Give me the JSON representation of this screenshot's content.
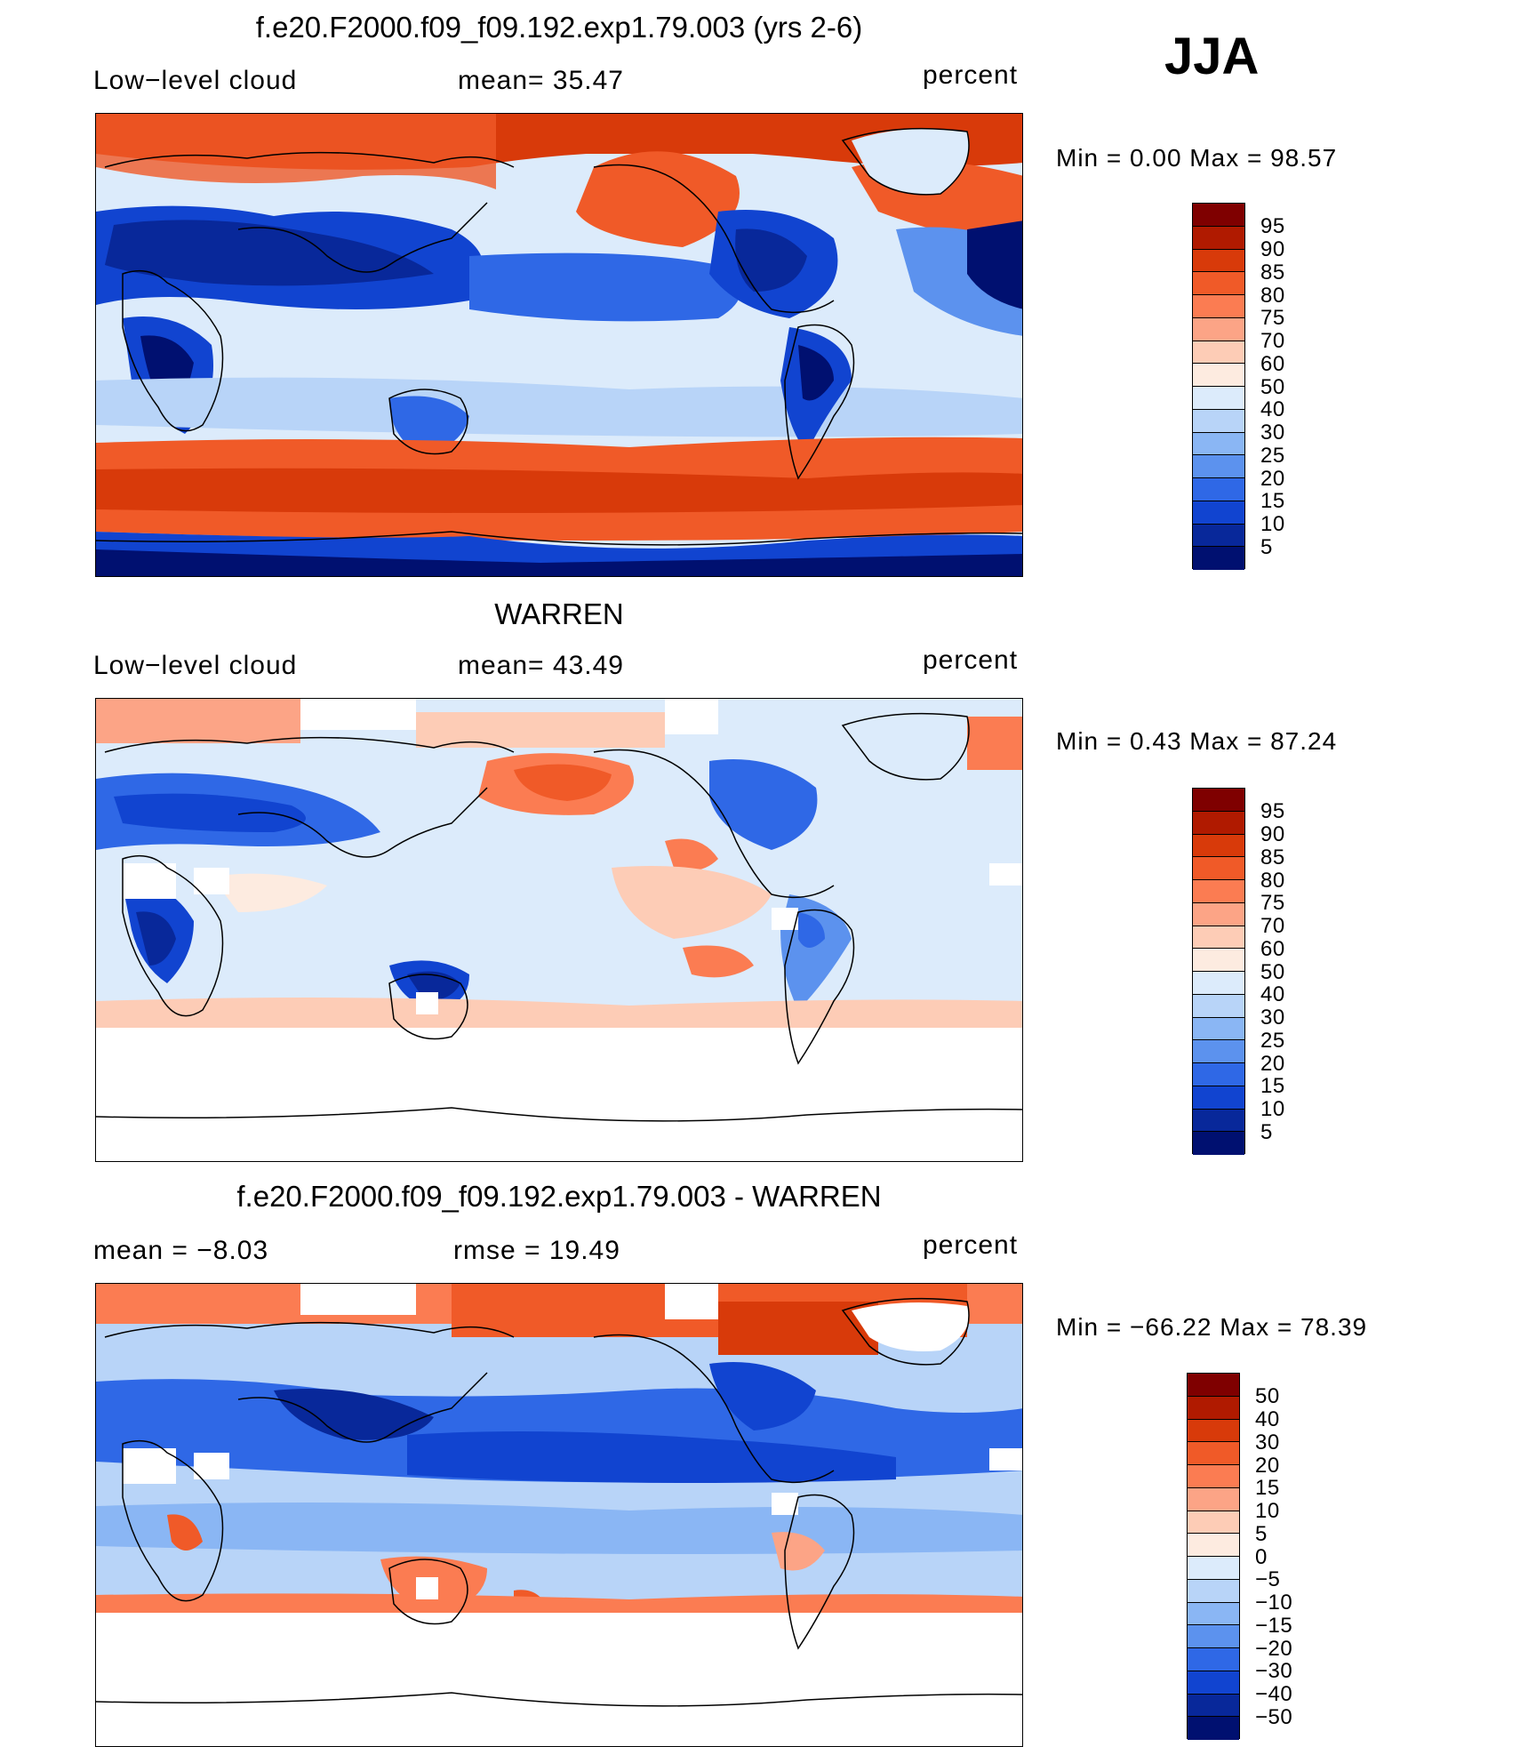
{
  "season": "JJA",
  "panels": [
    {
      "title": "f.e20.F2000.f09_f09.192.exp1.79.003 (yrs 2-6)",
      "left_label": "Low−level cloud",
      "mid_label": "mean=   35.47",
      "right_label": "percent",
      "minmax": "Min =     0.00  Max =    98.57",
      "colorbar_ticks": [
        "95",
        "90",
        "85",
        "80",
        "75",
        "70",
        "60",
        "50",
        "40",
        "30",
        "25",
        "20",
        "15",
        "10",
        "5"
      ]
    },
    {
      "title": "WARREN",
      "left_label": "Low−level cloud",
      "mid_label": "mean=   43.49",
      "right_label": "percent",
      "minmax": "Min =     0.43  Max =    87.24",
      "colorbar_ticks": [
        "95",
        "90",
        "85",
        "80",
        "75",
        "70",
        "60",
        "50",
        "40",
        "30",
        "25",
        "20",
        "15",
        "10",
        "5"
      ]
    },
    {
      "title": "f.e20.F2000.f09_f09.192.exp1.79.003 - WARREN",
      "left_label": "mean  =    −8.03",
      "mid_label": "rmse  =    19.49",
      "right_label": "percent",
      "minmax": "Min = −66.22  Max =    78.39",
      "colorbar_ticks": [
        "50",
        "40",
        "30",
        "20",
        "15",
        "10",
        "5",
        "0",
        "−5",
        "−10",
        "−15",
        "−20",
        "−30",
        "−40",
        "−50"
      ]
    }
  ],
  "colors": {
    "abs_scale": [
      "#7f0000",
      "#b01a00",
      "#d83a0a",
      "#f05a28",
      "#fb7c52",
      "#fca486",
      "#fdccb6",
      "#fdebe0",
      "#dcebfb",
      "#b8d4f8",
      "#8ab6f4",
      "#5c92ee",
      "#2f68e6",
      "#1144d0",
      "#08289a",
      "#001070"
    ],
    "diff_scale": [
      "#7f0000",
      "#b01a00",
      "#d83a0a",
      "#f05a28",
      "#fb7c52",
      "#fca486",
      "#fdccb6",
      "#fdebe0",
      "#dcebfb",
      "#b8d4f8",
      "#8ab6f4",
      "#5c92ee",
      "#2f68e6",
      "#1144d0",
      "#08289a",
      "#001070"
    ]
  }
}
